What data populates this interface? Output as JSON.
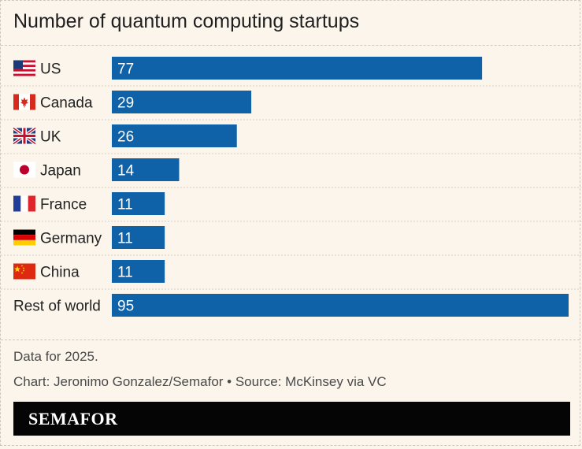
{
  "title": "Number of quantum computing startups",
  "footnote": "Data for 2025.",
  "credit": "Chart: Jeronimo Gonzalez/Semafor • Source: McKinsey via VC",
  "brand": "SEMAFOR",
  "colors": {
    "bar": "#0f61a8",
    "background": "#fbf5eb",
    "banner": "#050505"
  },
  "chart_data": {
    "type": "bar",
    "orientation": "horizontal",
    "categories": [
      "US",
      "Canada",
      "UK",
      "Japan",
      "France",
      "Germany",
      "China",
      "Rest of world"
    ],
    "values": [
      77,
      29,
      26,
      14,
      11,
      11,
      11,
      95
    ],
    "flags": [
      "us-flag-icon",
      "canada-flag-icon",
      "uk-flag-icon",
      "japan-flag-icon",
      "france-flag-icon",
      "germany-flag-icon",
      "china-flag-icon",
      ""
    ],
    "title": "Number of quantum computing startups",
    "xlabel": "",
    "ylabel": "",
    "xlim": [
      0,
      95
    ],
    "grid": false,
    "legend": "none"
  }
}
